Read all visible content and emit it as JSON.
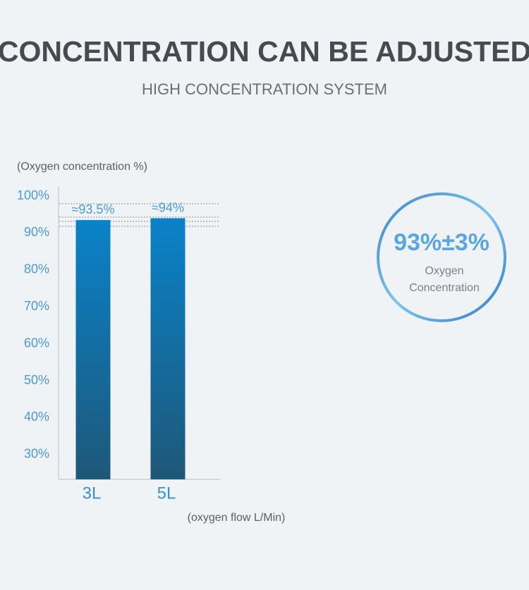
{
  "chart_data": {
    "type": "bar",
    "title": "CONCENTRATION CAN BE ADJUSTED",
    "subtitle": "HIGH CONCENTRATION SYSTEM",
    "y_label": "(Oxygen concentration %)",
    "x_label": "(oxygen flow L/Min)",
    "categories": [
      "3L",
      "5L"
    ],
    "values": [
      93.5,
      94
    ],
    "value_labels": [
      "≈93.5%",
      "≈94%"
    ],
    "color": "#0a82c9",
    "ylim": [
      23.3,
      102.5
    ],
    "yticks": [
      {
        "value": 100,
        "label": "100%"
      },
      {
        "value": 90,
        "label": "90%"
      },
      {
        "value": 80,
        "label": "80%"
      },
      {
        "value": 70,
        "label": "70%"
      },
      {
        "value": 60,
        "label": "60%"
      },
      {
        "value": 50,
        "label": "50%"
      },
      {
        "value": 40,
        "label": "40%"
      },
      {
        "value": 30,
        "label": "30%"
      }
    ],
    "grid": false
  },
  "badge": {
    "value": "93%±3%",
    "lines": [
      "Oxygen",
      "Concentration"
    ]
  }
}
